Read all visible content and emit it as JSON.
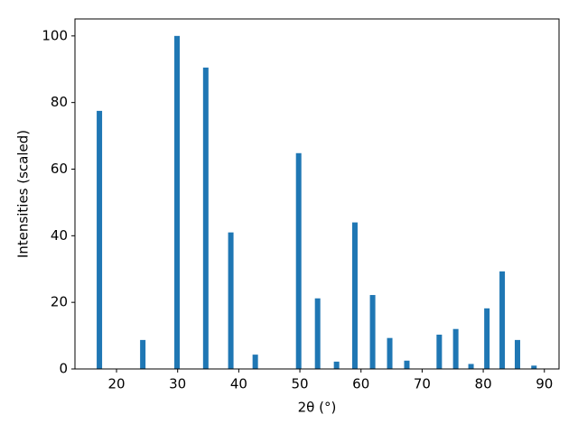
{
  "chart_data": {
    "type": "bar",
    "xlabel": "2θ (°)",
    "ylabel": "Intensities (scaled)",
    "x": [
      17.2,
      24.3,
      29.9,
      34.6,
      38.7,
      42.7,
      49.8,
      52.9,
      56.0,
      59.0,
      61.9,
      64.7,
      67.5,
      72.8,
      75.5,
      78.0,
      80.6,
      83.1,
      85.6,
      88.3
    ],
    "values": [
      77.5,
      8.7,
      100,
      90.5,
      41,
      4.3,
      64.8,
      21.2,
      2.2,
      44,
      22.2,
      9.3,
      2.5,
      10.3,
      12,
      1.5,
      18.2,
      29.3,
      8.7,
      1
    ],
    "color": "#1f77b4",
    "xlim": [
      13.2,
      92.4
    ],
    "xticks": [
      20,
      30,
      40,
      50,
      60,
      70,
      80,
      90
    ],
    "ylim": [
      0,
      105.1
    ],
    "yticks": [
      0,
      20,
      40,
      60,
      80,
      100
    ],
    "grid": false
  }
}
